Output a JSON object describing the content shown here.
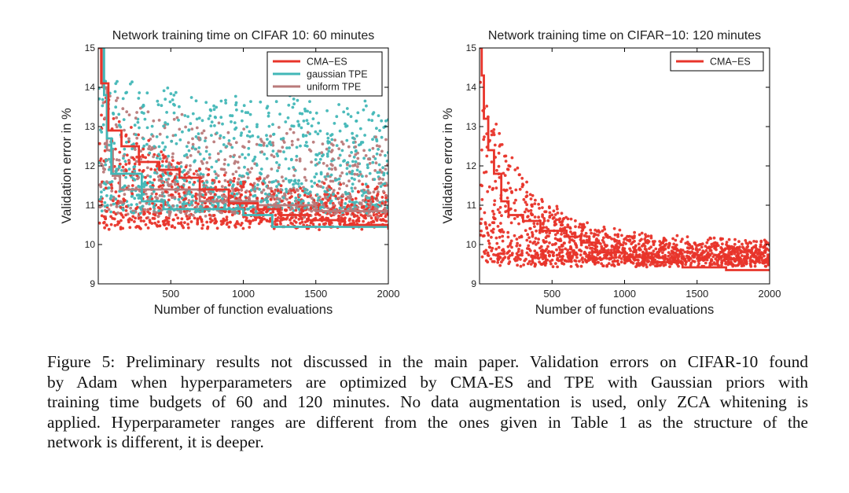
{
  "colors": {
    "cma_es": "#e8342a",
    "gaussian_tpe": "#42b7b7",
    "uniform_tpe": "#b97a7a",
    "axis": "#000000"
  },
  "chart_data": [
    {
      "type": "scatter",
      "title": "Network training time on CIFAR 10: 60 minutes",
      "xlabel": "Number of function evaluations",
      "ylabel": "Validation error in %",
      "xlim": [
        0,
        2000
      ],
      "ylim": [
        9,
        15
      ],
      "xticks": [
        500,
        1000,
        1500,
        2000
      ],
      "yticks": [
        9,
        10,
        11,
        12,
        13,
        14,
        15
      ],
      "grid": false,
      "legend": {
        "placement": "top-right",
        "entries": [
          "CMA−ES",
          "gaussian TPE",
          "uniform TPE"
        ]
      },
      "series": [
        {
          "name": "CMA−ES",
          "color": "#e8342a",
          "cloud": {
            "count": 900,
            "floor": 10.5,
            "spread_start": 3.6,
            "spread_end": 0.9,
            "decay": 420,
            "cap": 15
          },
          "best_so_far": [
            [
              0,
              15
            ],
            [
              20,
              14.1
            ],
            [
              70,
              12.9
            ],
            [
              160,
              12.5
            ],
            [
              280,
              12.1
            ],
            [
              420,
              11.9
            ],
            [
              560,
              11.7
            ],
            [
              700,
              11.4
            ],
            [
              900,
              11.05
            ],
            [
              1100,
              10.9
            ],
            [
              1250,
              10.75
            ],
            [
              1450,
              10.62
            ],
            [
              1700,
              10.5
            ],
            [
              2000,
              10.38
            ]
          ]
        },
        {
          "name": "gaussian TPE",
          "color": "#42b7b7",
          "cloud": {
            "count": 900,
            "floor": 10.9,
            "spread_start": 3.4,
            "spread_end": 2.6,
            "decay": 900,
            "cap": 15
          },
          "best_so_far": [
            [
              0,
              15
            ],
            [
              40,
              13.8
            ],
            [
              60,
              12.7
            ],
            [
              90,
              11.8
            ],
            [
              300,
              11.1
            ],
            [
              450,
              10.9
            ],
            [
              850,
              10.9
            ],
            [
              1000,
              10.75
            ],
            [
              1200,
              10.45
            ],
            [
              2000,
              10.45
            ]
          ]
        },
        {
          "name": "uniform TPE",
          "color": "#b97a7a",
          "cloud": {
            "count": 700,
            "floor": 10.8,
            "spread_start": 3.3,
            "spread_end": 1.9,
            "decay": 650,
            "cap": 15
          },
          "best_so_far": [
            [
              0,
              15
            ],
            [
              30,
              14.0
            ],
            [
              60,
              12.4
            ],
            [
              100,
              11.75
            ],
            [
              150,
              11.4
            ],
            [
              600,
              11.4
            ],
            [
              700,
              11.1
            ],
            [
              1100,
              11.0
            ],
            [
              1500,
              10.85
            ],
            [
              2000,
              10.85
            ]
          ]
        }
      ]
    },
    {
      "type": "scatter",
      "title": "Network training time on CIFAR−10: 120 minutes",
      "xlabel": "Number of function evaluations",
      "ylabel": "Validation error in %",
      "xlim": [
        0,
        2000
      ],
      "ylim": [
        9,
        15
      ],
      "xticks": [
        500,
        1000,
        1500,
        2000
      ],
      "yticks": [
        9,
        10,
        11,
        12,
        13,
        14,
        15
      ],
      "grid": false,
      "legend": {
        "placement": "top-right",
        "entries": [
          "CMA−ES"
        ]
      },
      "series": [
        {
          "name": "CMA−ES",
          "color": "#e8342a",
          "cloud": {
            "count": 1500,
            "floor": 9.55,
            "spread_start": 4.8,
            "spread_end": 0.5,
            "decay": 330,
            "cap": 15
          },
          "best_so_far": [
            [
              0,
              15
            ],
            [
              15,
              14.3
            ],
            [
              30,
              13.2
            ],
            [
              60,
              12.4
            ],
            [
              100,
              11.8
            ],
            [
              150,
              11.1
            ],
            [
              200,
              10.75
            ],
            [
              300,
              10.6
            ],
            [
              420,
              10.35
            ],
            [
              600,
              10.2
            ],
            [
              700,
              10.05
            ],
            [
              800,
              9.8
            ],
            [
              1000,
              9.68
            ],
            [
              1200,
              9.55
            ],
            [
              1400,
              9.42
            ],
            [
              1700,
              9.35
            ],
            [
              2000,
              9.33
            ]
          ]
        }
      ]
    }
  ],
  "caption": {
    "lines": [
      "Figure 5:  Preliminary results not discussed in the main paper. Validation errors on CIFAR-10 found",
      "by Adam when hyperparameters are optimized by CMA-ES and TPE with Gaussian priors with",
      "training time budgets of 60 and 120 minutes. No data augmentation is used, only ZCA whitening is",
      "applied. Hyperparameter ranges are different from the ones given in Table 1 as the structure of the",
      "network is different, it is deeper."
    ]
  }
}
